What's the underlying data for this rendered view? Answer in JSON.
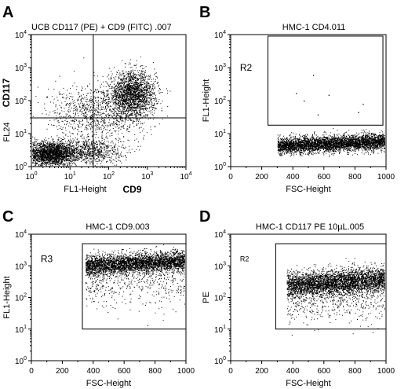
{
  "chart_data": [
    {
      "panel": "A",
      "type": "scatter",
      "title": "UCB CD117 (PE) + CD9 (FITC) .007",
      "xscale": "log",
      "yscale": "log",
      "xlim": [
        1,
        10000
      ],
      "ylim": [
        1,
        10000
      ],
      "x_ticks": [
        "10^0",
        "10^1",
        "10^2",
        "10^3",
        "10^4"
      ],
      "y_ticks": [
        "10^0",
        "10^1",
        "10^2",
        "10^3",
        "10^4"
      ],
      "xlabel": "FL1-Height",
      "xlabel_bold": "CD9",
      "ylabel": "FL24",
      "ylabel_bold": "CD117",
      "quadrant_lines": {
        "x": 40,
        "y": 30
      },
      "clusters": [
        {
          "x_center": 3,
          "y_center": 2.5,
          "x_spread_decades": 0.35,
          "y_spread_decades": 0.18,
          "points": 2400
        },
        {
          "x_center": 400,
          "y_center": 150,
          "x_spread_decades": 0.3,
          "y_spread_decades": 0.35,
          "points": 2200
        },
        {
          "x_center": 30,
          "y_center": 3,
          "x_spread_decades": 0.45,
          "y_spread_decades": 0.2,
          "points": 800
        },
        {
          "x_center": 40,
          "y_center": 40,
          "x_spread_decades": 0.6,
          "y_spread_decades": 0.45,
          "points": 900
        }
      ]
    },
    {
      "panel": "B",
      "type": "scatter",
      "title": "HMC-1 CD4.011",
      "xscale": "linear",
      "yscale": "log",
      "xlim": [
        0,
        1000
      ],
      "ylim": [
        1,
        10000
      ],
      "x_ticks": [
        "0",
        "200",
        "400",
        "600",
        "800",
        "1000"
      ],
      "y_ticks": [
        "10^0",
        "10^1",
        "10^2",
        "10^3",
        "10^4"
      ],
      "xlabel": "FSC-Height",
      "ylabel": "FL1-Height",
      "gate": {
        "label": "R2",
        "x": [
          240,
          980
        ],
        "y": [
          18,
          9000
        ],
        "label_at": [
          60,
          800
        ],
        "label_size": "normal"
      },
      "clusters": [
        {
          "x_range": [
            300,
            990
          ],
          "y_center": 5,
          "y_slope_per_1000": 0.2,
          "y_spread_decades": 0.12,
          "points": 4200
        }
      ],
      "outliers": [
        [
          530,
          600
        ],
        [
          470,
          100
        ],
        [
          630,
          150
        ],
        [
          820,
          45
        ],
        [
          560,
          38
        ],
        [
          850,
          80
        ],
        [
          420,
          170
        ]
      ]
    },
    {
      "panel": "C",
      "type": "scatter",
      "title": "HMC-1 CD9.003",
      "xscale": "linear",
      "yscale": "log",
      "xlim": [
        0,
        1000
      ],
      "ylim": [
        1,
        10000
      ],
      "x_ticks": [
        "0",
        "200",
        "400",
        "600",
        "800",
        "1000"
      ],
      "y_ticks": [
        "10^0",
        "10^1",
        "10^2",
        "10^3",
        "10^4"
      ],
      "xlabel": "FSC-Height",
      "ylabel": "FL1-Height",
      "gate": {
        "label": "R3",
        "x": [
          330,
          1000
        ],
        "y": [
          10,
          5000
        ],
        "label_at": [
          60,
          1300
        ],
        "label_size": "normal"
      },
      "clusters": [
        {
          "x_range": [
            350,
            990
          ],
          "y_center": 1200,
          "y_slope_per_1000": 0.25,
          "y_spread_decades": 0.16,
          "points": 3600
        },
        {
          "x_range": [
            350,
            990
          ],
          "y_center": 300,
          "y_slope_per_1000": 0.1,
          "y_spread_decades": 0.4,
          "points": 500
        }
      ]
    },
    {
      "panel": "D",
      "type": "scatter",
      "title": "HMC-1 CD117 PE 10µL.005",
      "xscale": "linear",
      "yscale": "log",
      "xlim": [
        0,
        1000
      ],
      "ylim": [
        1,
        10000
      ],
      "x_ticks": [
        "0",
        "200",
        "400",
        "600",
        "800",
        "1000"
      ],
      "y_ticks": [
        "10^0",
        "10^1",
        "10^2",
        "10^3",
        "10^4"
      ],
      "xlabel": "FSC-Height",
      "ylabel": "PE",
      "gate": {
        "label": "R2",
        "x": [
          290,
          1000
        ],
        "y": [
          10,
          5000
        ],
        "label_at": [
          60,
          1400
        ],
        "label_size": "small"
      },
      "clusters": [
        {
          "x_range": [
            360,
            990
          ],
          "y_center": 300,
          "y_slope_per_1000": 0.3,
          "y_spread_decades": 0.2,
          "points": 3800
        },
        {
          "x_range": [
            360,
            990
          ],
          "y_center": 80,
          "y_slope_per_1000": 0.2,
          "y_spread_decades": 0.35,
          "points": 500
        }
      ]
    }
  ]
}
